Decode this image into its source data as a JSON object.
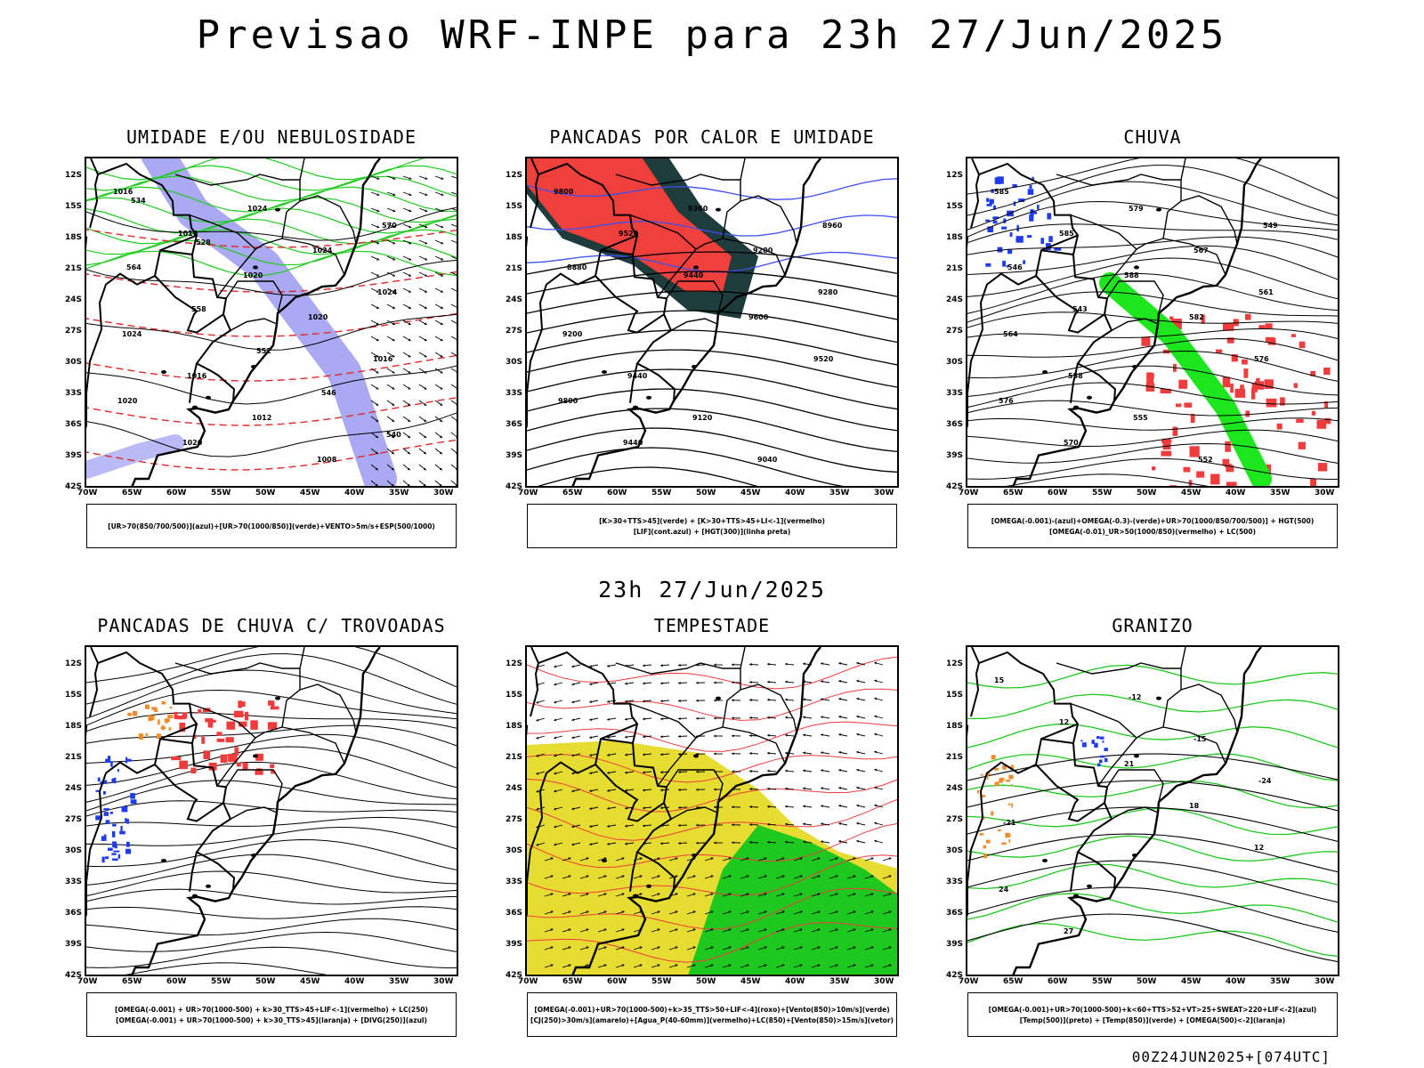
{
  "main_title": "Previsao WRF-INPE  para 23h 27/Jun/2025",
  "sub_title": "23h 27/Jun/2025",
  "footer": "00Z24JUN2025+[074UTC]",
  "lat_labels": [
    "12S",
    "15S",
    "18S",
    "21S",
    "24S",
    "27S",
    "30S",
    "33S",
    "36S",
    "39S",
    "42S"
  ],
  "lon_labels": [
    "70W",
    "65W",
    "60W",
    "55W",
    "50W",
    "45W",
    "40W",
    "35W",
    "30W"
  ],
  "panels": [
    {
      "title": "UMIDADE E/OU NEBULOSIDADE",
      "legend": [
        "[UR>70(850/700/500)](azul)+[UR>70(1000/850)](verde)+VENTO>5m/s+ESP(500/1000)"
      ],
      "labels": [
        "1016",
        "1016",
        "1020",
        "1020",
        "1016",
        "1020",
        "1020",
        "1024",
        "1024",
        "1024",
        "1024",
        "1016",
        "1012",
        "1008",
        "570",
        "564",
        "558",
        "552",
        "546",
        "540",
        "534",
        "528"
      ],
      "colors": {
        "blue": "#8c8cf0",
        "green": "#1fcc1f",
        "red": "#e02828"
      }
    },
    {
      "title": "PANCADAS POR CALOR E UMIDADE",
      "legend": [
        "[K>30+TTS>45](verde)  +  [K>30+TTS>45+LI<-1](vermelho)",
        "[LIF](cont.azul)  +  [HGT(300)](linha preta)"
      ],
      "labels": [
        "9800",
        "9520",
        "9440",
        "9600",
        "9520",
        "9800",
        "9440",
        "9360",
        "9200",
        "9280",
        "9200",
        "9440",
        "9120",
        "9040",
        "8960",
        "8880"
      ],
      "colors": {
        "red": "#f0403c",
        "dark": "#1e3c3c",
        "blue": "#3c50f0"
      }
    },
    {
      "title": "CHUVA",
      "legend": [
        "[OMEGA(-0.001)-(azul)+OMEGA(-0.3)-(verde)+UR>70(1000/850/700/500)] + HGT(500)",
        "[OMEGA(-0.01)_UR>50(1000/850)(vermelho) + LC(500)"
      ],
      "labels": [
        "585",
        "585",
        "588",
        "582",
        "576",
        "576",
        "570",
        "579",
        "567",
        "561",
        "564",
        "558",
        "555",
        "552",
        "549",
        "546",
        "543"
      ],
      "colors": {
        "red": "#f03c3c",
        "green": "#1ee61e",
        "blue": "#1e3cf0"
      }
    },
    {
      "title": "PANCADAS DE CHUVA C/ TROVOADAS",
      "legend": [
        "[OMEGA(-0.001) + UR>70(1000-500) + k>30_TTS>45+LIF<-1](vermelho) + LC(250)",
        "[OMEGA(-0.001) + UR>70(1000-500) + k>30_TTS>45](laranja) + [DIVG(250)](azul)"
      ],
      "labels": [],
      "colors": {
        "red": "#f03c3c",
        "orange": "#f08c28",
        "blue": "#1e3cf0"
      }
    },
    {
      "title": "TEMPESTADE",
      "legend": [
        "[OMEGA(-0.001)+UR>70(1000-500)+k>35_TTS>50+LIF<-4](roxo)+[Vento(850)>10m/s](verde)",
        "[CJ(250)>30m/s](amarelo)+[Agua_P(40-60mm)](vermelho)+LC(850)+[Vento(850)>15m/s](vetor)"
      ],
      "labels": [],
      "colors": {
        "yellow": "#e6dc32",
        "green": "#1ec81e",
        "red": "#f03c3c"
      }
    },
    {
      "title": "GRANIZO",
      "legend": [
        "[OMEGA(-0.001)+UR>70(1000-500)+k<60+TTS>52+VT>25+SWEAT>220+LIF<-2](azul)",
        "[Temp(500)](preto) + [Temp(850)](verde) + [OMEGA(500)<-2](laranja)"
      ],
      "labels": [
        "15",
        "12",
        "21",
        "18",
        "12",
        "24",
        "27",
        "-12",
        "-15",
        "-24",
        "-21"
      ],
      "colors": {
        "green": "#1ec81e",
        "blue": "#1e3cf0",
        "orange": "#f08c28"
      }
    }
  ]
}
